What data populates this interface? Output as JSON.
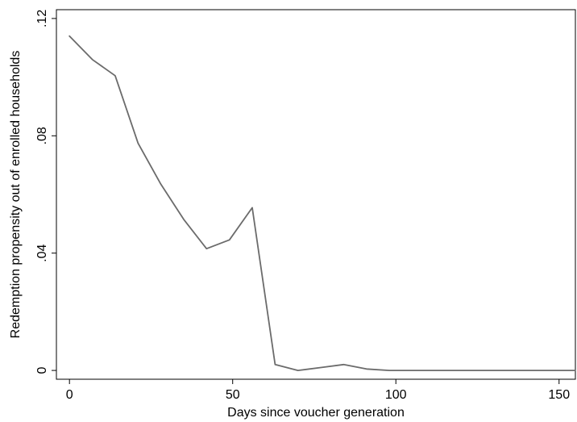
{
  "chart_data": {
    "type": "line",
    "title": "",
    "xlabel": "Days since voucher generation",
    "ylabel": "Redemption propensity out of enrolled households",
    "xlim": [
      -4,
      155
    ],
    "ylim": [
      -0.003,
      0.123
    ],
    "x_ticks": [
      0,
      50,
      100,
      150
    ],
    "x_tick_labels": [
      "0",
      "50",
      "100",
      "150"
    ],
    "y_ticks": [
      0,
      0.04,
      0.08,
      0.12
    ],
    "y_tick_labels": [
      "0",
      ".04",
      ".08",
      ".12"
    ],
    "grid": false,
    "line_color": "#6b6b6b",
    "series": [
      {
        "x": [
          0,
          7,
          14,
          21,
          28,
          35,
          42,
          49,
          56,
          63,
          70,
          77,
          84,
          91,
          98,
          105,
          112,
          119,
          126,
          133,
          140,
          147,
          155
        ],
        "y": [
          0.114,
          0.106,
          0.1005,
          0.0775,
          0.0635,
          0.0515,
          0.0415,
          0.0445,
          0.0555,
          0.002,
          0.0,
          0.001,
          0.002,
          0.0005,
          0.0,
          0.0,
          0.0,
          0.0,
          0.0,
          0.0,
          0.0,
          0.0,
          0.0
        ]
      }
    ]
  }
}
